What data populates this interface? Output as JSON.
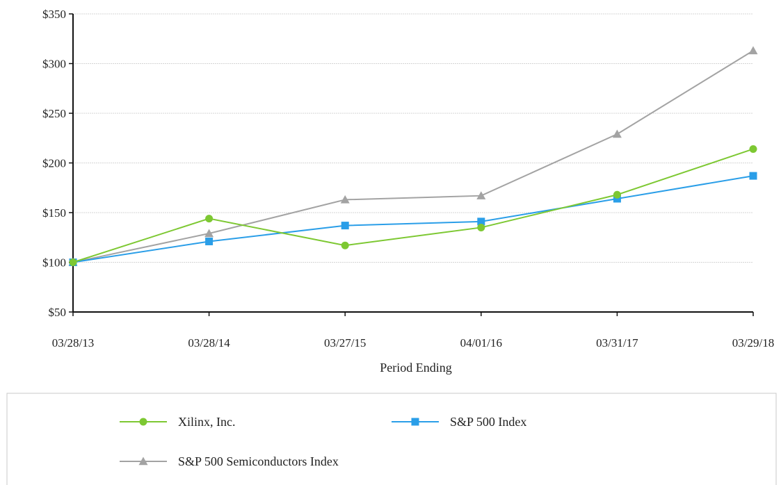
{
  "chart_data": {
    "type": "line",
    "title": "",
    "xlabel": "Period Ending",
    "ylabel": "",
    "categories": [
      "03/28/13",
      "03/28/14",
      "03/27/15",
      "04/01/16",
      "03/31/17",
      "03/29/18"
    ],
    "y_ticks": [
      "$50",
      "$100",
      "$150",
      "$200",
      "$250",
      "$300",
      "$350"
    ],
    "y_tick_values": [
      50,
      100,
      150,
      200,
      250,
      300,
      350
    ],
    "ylim": [
      50,
      350
    ],
    "grid": true,
    "legend_position": "bottom",
    "series": [
      {
        "name": "Xilinx, Inc.",
        "color": "#7dc832",
        "marker": "circle",
        "values": [
          100,
          144,
          117,
          135,
          168,
          214
        ]
      },
      {
        "name": "S&P 500 Index",
        "color": "#2a9ee8",
        "marker": "square",
        "values": [
          100,
          121,
          137,
          141,
          164,
          187
        ]
      },
      {
        "name": "S&P 500 Semiconductors Index",
        "color": "#a3a3a3",
        "marker": "triangle",
        "values": [
          100,
          129,
          163,
          167,
          229,
          313
        ]
      }
    ]
  }
}
